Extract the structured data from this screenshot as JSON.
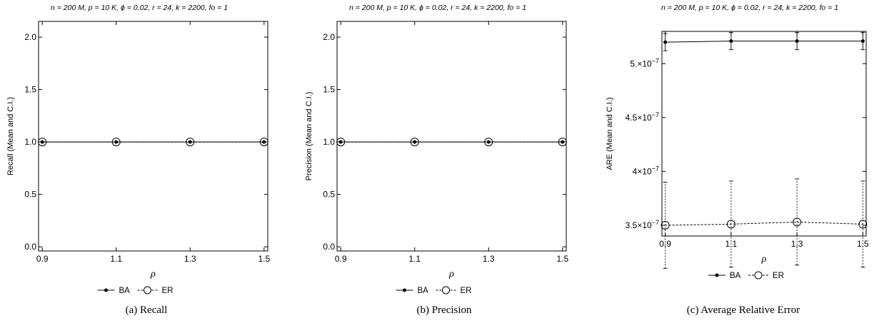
{
  "panels": [
    {
      "caption": "(a) Recall"
    },
    {
      "caption": "(b) Precision"
    },
    {
      "caption": "(c) Average Relative Error"
    }
  ],
  "chart_data": [
    {
      "type": "line",
      "title": "n = 200 M, p = 10 K, ϕ = 0.02, r = 24, k = 2200, fo = 1",
      "xlabel": "ρ",
      "ylabel": "Recall (Mean and C.I.)",
      "x": [
        0.9,
        1.1,
        1.3,
        1.5
      ],
      "x_ticks": [
        "0.9",
        "1.1",
        "1.3",
        "1.5"
      ],
      "xlim": [
        0.89,
        1.51
      ],
      "ylim": [
        -0.04,
        2.15
      ],
      "y_ticks": [
        0.0,
        0.5,
        1.0,
        1.5,
        2.0
      ],
      "y_tick_labels": [
        "0.0",
        "0.5",
        "1.0",
        "1.5",
        "2.0"
      ],
      "series": [
        {
          "name": "BA",
          "values": [
            1.0,
            1.0,
            1.0,
            1.0
          ],
          "error": [
            0,
            0,
            0,
            0
          ],
          "line": "solid",
          "marker": "filled-circle"
        },
        {
          "name": "ER",
          "values": [
            1.0,
            1.0,
            1.0,
            1.0
          ],
          "error": [
            0,
            0,
            0,
            0
          ],
          "line": "dashed",
          "marker": "open-circle"
        }
      ],
      "legend": "bottom",
      "grid": false
    },
    {
      "type": "line",
      "title": "n = 200 M, p = 10 K, ϕ = 0.02, r = 24, k = 2200, fo = 1",
      "xlabel": "ρ",
      "ylabel": "Precision (Mean and C.I.)",
      "x": [
        0.9,
        1.1,
        1.3,
        1.5
      ],
      "x_ticks": [
        "0.9",
        "1.1",
        "1.3",
        "1.5"
      ],
      "xlim": [
        0.89,
        1.51
      ],
      "ylim": [
        -0.04,
        2.15
      ],
      "y_ticks": [
        0.0,
        0.5,
        1.0,
        1.5,
        2.0
      ],
      "y_tick_labels": [
        "0.0",
        "0.5",
        "1.0",
        "1.5",
        "2.0"
      ],
      "series": [
        {
          "name": "BA",
          "values": [
            1.0,
            1.0,
            1.0,
            1.0
          ],
          "error": [
            0,
            0,
            0,
            0
          ],
          "line": "solid",
          "marker": "filled-circle"
        },
        {
          "name": "ER",
          "values": [
            1.0,
            1.0,
            1.0,
            1.0
          ],
          "error": [
            0,
            0,
            0,
            0
          ],
          "line": "dashed",
          "marker": "open-circle"
        }
      ],
      "legend": "bottom",
      "grid": false
    },
    {
      "type": "line",
      "title": "n = 200 M, p = 10 K, ϕ = 0.02, r = 24, k = 2200, fo = 1",
      "xlabel": "ρ",
      "ylabel": "ARE (Mean and C.I.)",
      "x": [
        0.9,
        1.1,
        1.3,
        1.5
      ],
      "x_ticks": [
        "0.9",
        "1.1",
        "1.3",
        "1.5"
      ],
      "xlim": [
        0.89,
        1.51
      ],
      "ylim": [
        3.4e-07,
        5.3e-07
      ],
      "y_ticks": [
        3.5e-07,
        4e-07,
        4.5e-07,
        5e-07
      ],
      "y_tick_labels": [
        {
          "mantissa": "3.5",
          "base": "10",
          "exp": "−7"
        },
        {
          "mantissa": "4",
          "base": "10",
          "exp": "−7"
        },
        {
          "mantissa": "4.5",
          "base": "10",
          "exp": "−7"
        },
        {
          "mantissa": "5.",
          "base": "10",
          "exp": "−7"
        }
      ],
      "series": [
        {
          "name": "BA",
          "values": [
            5.2e-07,
            5.21e-07,
            5.21e-07,
            5.21e-07
          ],
          "error": [
            8e-09,
            8e-09,
            8e-09,
            8e-09
          ],
          "line": "solid",
          "marker": "filled-circle"
        },
        {
          "name": "ER",
          "values": [
            3.5e-07,
            3.51e-07,
            3.53e-07,
            3.51e-07
          ],
          "error": [
            4e-08,
            4e-08,
            4e-08,
            4e-08
          ],
          "line": "dashed",
          "marker": "open-circle"
        }
      ],
      "legend": "bottom",
      "grid": false
    }
  ],
  "colors": {
    "ink": "#000000",
    "background": "#ffffff"
  }
}
